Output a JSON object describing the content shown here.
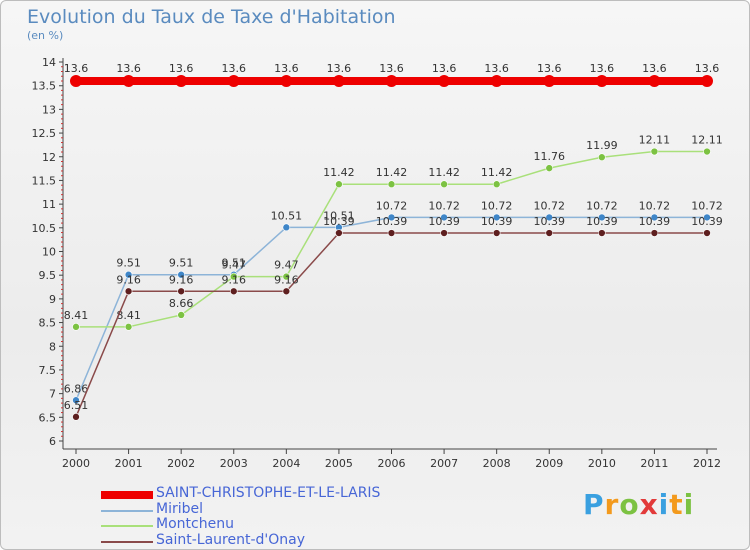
{
  "title": "Evolution du Taux de Taxe d'Habitation",
  "unit_label": "(en %)",
  "brand": {
    "text": "Proxiti",
    "letters": [
      "P",
      "r",
      "o",
      "x",
      "i",
      "t",
      "i"
    ],
    "colors": [
      "#3aa0e0",
      "#f39a1d",
      "#7cc242",
      "#e23a3a",
      "#3aa0e0",
      "#f39a1d",
      "#7cc242"
    ]
  },
  "chart_data": {
    "type": "line",
    "title": "Evolution du Taux de Taxe d'Habitation",
    "ylabel": "(en %)",
    "xlabel": "",
    "categories": [
      "2000",
      "2001",
      "2002",
      "2003",
      "2004",
      "2005",
      "2006",
      "2007",
      "2008",
      "2009",
      "2010",
      "2011",
      "2012"
    ],
    "ylim": [
      6,
      14
    ],
    "yticks": [
      "6",
      "6.5",
      "7",
      "7.5",
      "8",
      "8.5",
      "9",
      "9.5",
      "10",
      "10.5",
      "11",
      "11.5",
      "12",
      "12.5",
      "13",
      "13.5",
      "14"
    ],
    "grid": false,
    "legend_position": "bottom-left",
    "series": [
      {
        "name": "SAINT-CHRISTOPHE-ET-LE-LARIS",
        "color": "#ee0000",
        "marker_color": "#ee0000",
        "values": [
          13.6,
          13.6,
          13.6,
          13.6,
          13.6,
          13.6,
          13.6,
          13.6,
          13.6,
          13.6,
          13.6,
          13.6,
          13.6
        ],
        "labels": [
          "13.6",
          "13.6",
          "13.6",
          "13.6",
          "13.6",
          "13.6",
          "13.6",
          "13.6",
          "13.6",
          "13.6",
          "13.6",
          "13.6",
          "13.6"
        ]
      },
      {
        "name": "Miribel",
        "color": "#8db4d8",
        "marker_color": "#3f86c8",
        "values": [
          6.86,
          9.51,
          9.51,
          9.51,
          10.51,
          10.51,
          10.72,
          10.72,
          10.72,
          10.72,
          10.72,
          10.72,
          10.72
        ],
        "labels": [
          "6.86",
          "9.51",
          "9.51",
          "9.51",
          "10.51",
          "10.51",
          "10.72",
          "10.72",
          "10.72",
          "10.72",
          "10.72",
          "10.72",
          "10.72"
        ]
      },
      {
        "name": "Montchenu",
        "color": "#a9e07a",
        "marker_color": "#7cc242",
        "values": [
          8.41,
          8.41,
          8.66,
          9.47,
          9.47,
          11.42,
          11.42,
          11.42,
          11.42,
          11.76,
          11.99,
          12.11,
          12.11
        ],
        "labels": [
          "8.41",
          "8.41",
          "8.66",
          "9.47",
          "9.47",
          "11.42",
          "11.42",
          "11.42",
          "11.42",
          "11.76",
          "11.99",
          "12.11",
          "12.11"
        ]
      },
      {
        "name": "Saint-Laurent-d'Onay",
        "color": "#8a4a4a",
        "marker_color": "#5e1f1f",
        "values": [
          6.51,
          9.16,
          9.16,
          9.16,
          9.16,
          10.39,
          10.39,
          10.39,
          10.39,
          10.39,
          10.39,
          10.39,
          10.39
        ],
        "labels": [
          "6.51",
          "9.16",
          "9.16",
          "9.16",
          "9.16",
          "10.39",
          "10.39",
          "10.39",
          "10.39",
          "10.39",
          "10.39",
          "10.39",
          "10.39"
        ]
      }
    ]
  }
}
